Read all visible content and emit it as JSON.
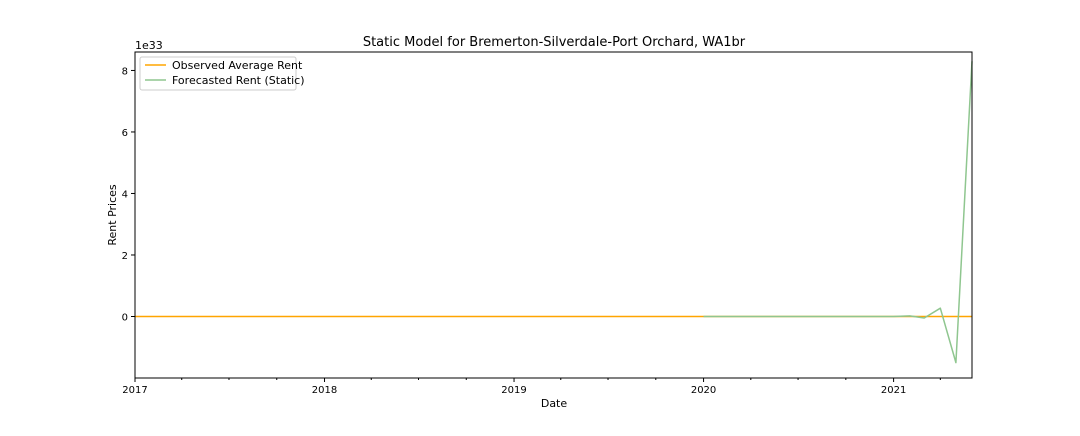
{
  "chart_data": {
    "type": "line",
    "title": "Static Model for Bremerton-Silverdale-Port Orchard, WA1br",
    "xlabel": "Date",
    "ylabel": "Rent Prices",
    "y_offset_label": "1e33",
    "y_scale_exponent": 33,
    "xlim": [
      "2017-01-01",
      "2021-06-01"
    ],
    "ylim": [
      -2e+33,
      8.6e+33
    ],
    "x_major_ticks": [
      {
        "date": "2017-01-01",
        "label": "2017"
      },
      {
        "date": "2018-01-01",
        "label": "2018"
      },
      {
        "date": "2019-01-01",
        "label": "2019"
      },
      {
        "date": "2020-01-01",
        "label": "2020"
      },
      {
        "date": "2021-01-01",
        "label": "2021"
      }
    ],
    "x_minor_ticks": [
      "2017-04-01",
      "2017-07-01",
      "2017-10-01",
      "2018-04-01",
      "2018-07-01",
      "2018-10-01",
      "2019-04-01",
      "2019-07-01",
      "2019-10-01",
      "2020-04-01",
      "2020-07-01",
      "2020-10-01",
      "2021-04-01"
    ],
    "y_ticks": [
      {
        "value": 0,
        "label": "0"
      },
      {
        "value": 2e+33,
        "label": "2"
      },
      {
        "value": 4e+33,
        "label": "4"
      },
      {
        "value": 6e+33,
        "label": "6"
      },
      {
        "value": 8e+33,
        "label": "8"
      }
    ],
    "legend_position": "top-left",
    "series": [
      {
        "name": "Observed Average Rent",
        "color": "#FFA500",
        "x": [
          "2017-01-01",
          "2021-06-01"
        ],
        "y": [
          0,
          0
        ]
      },
      {
        "name": "Forecasted Rent (Static)",
        "color": "#8FC68F",
        "x": [
          "2020-01-01",
          "2020-02-01",
          "2020-03-01",
          "2020-04-01",
          "2020-05-01",
          "2020-06-01",
          "2020-07-01",
          "2020-08-01",
          "2020-09-01",
          "2020-10-01",
          "2020-11-01",
          "2020-12-01",
          "2021-01-01",
          "2021-02-01",
          "2021-03-01",
          "2021-04-01",
          "2021-05-01",
          "2021-06-01"
        ],
        "y": [
          0,
          0,
          0,
          0,
          0,
          0,
          0,
          0,
          0,
          0,
          0,
          0,
          0,
          2e+31,
          -5e+31,
          2.7e+32,
          -1.5e+33,
          8.3e+33
        ]
      }
    ]
  }
}
